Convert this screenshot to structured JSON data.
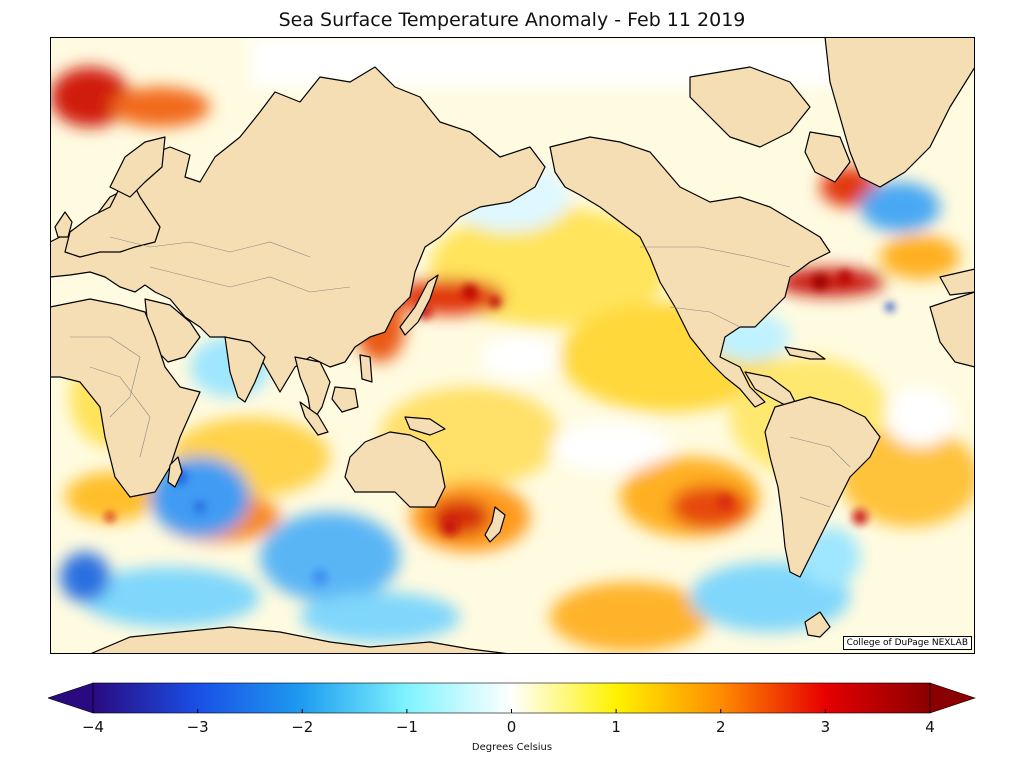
{
  "title": "Sea Surface Temperature Anomaly - Feb 11 2019",
  "credit": "College of DuPage NEXLAB",
  "colorbar": {
    "label": "Degrees Celsius",
    "ticks": [
      "−4",
      "−3",
      "−2",
      "−1",
      "0",
      "1",
      "2",
      "3",
      "4"
    ],
    "range": [
      -4,
      4
    ],
    "stops": [
      "#2a0a80",
      "#1a4fe6",
      "#1e9cf0",
      "#7ff3ff",
      "#ffffff",
      "#fff200",
      "#ff8c00",
      "#e60000",
      "#8b0000"
    ]
  },
  "colors": {
    "land": "#f5deb3",
    "coast": "#000000",
    "border": "#888888",
    "frame": "#000000",
    "warm_anomaly": "#ffd700",
    "strong_warm_anomaly": "#d40000",
    "cool_anomaly": "#1e90ff",
    "neutral": "#ffffff"
  }
}
